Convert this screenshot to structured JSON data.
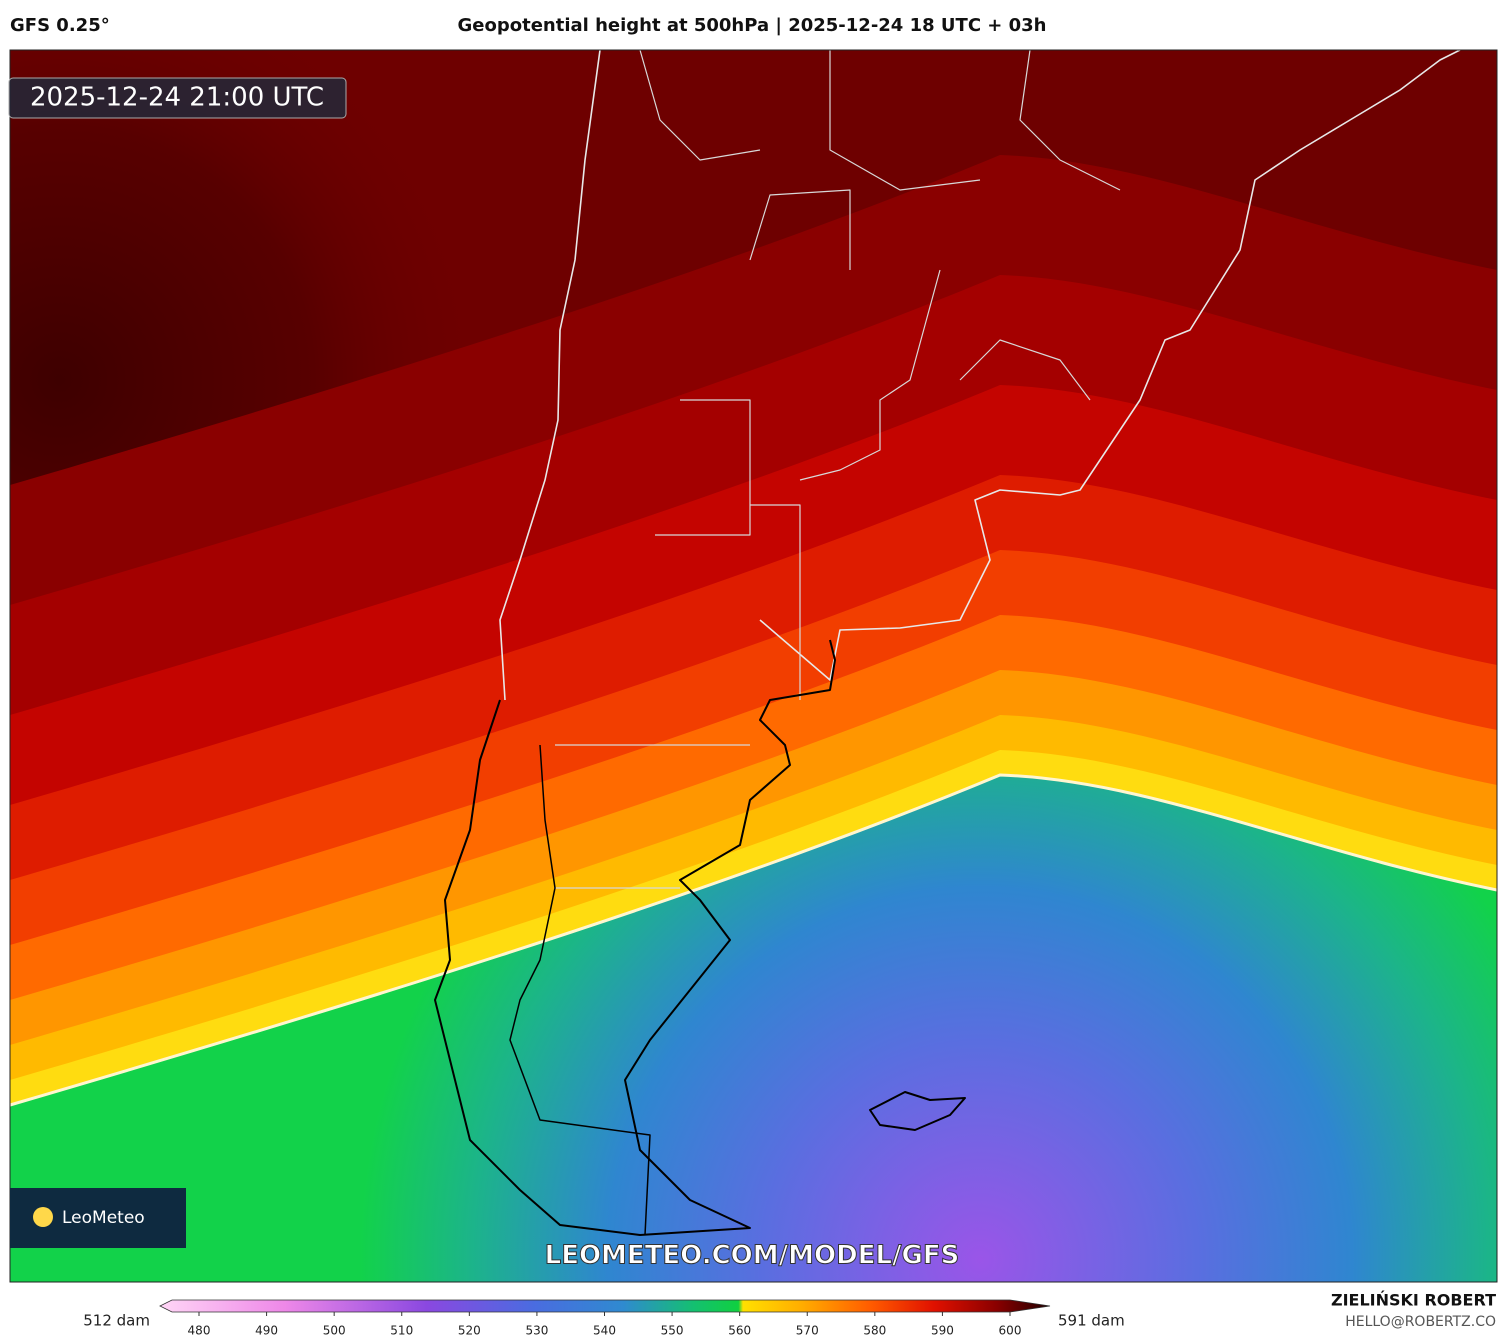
{
  "header": {
    "model": "GFS 0.25°",
    "title": "Geopotential height at 500hPa | 2025-12-24 18 UTC + 03h"
  },
  "map": {
    "valid_time": "2025-12-24 21:00 UTC",
    "watermark": "LEOMETEO.COM/MODEL/GFS",
    "logo": "LeoMeteo"
  },
  "colorbar": {
    "ticks": [
      480,
      490,
      500,
      510,
      520,
      530,
      540,
      550,
      560,
      570,
      580,
      590,
      600
    ],
    "left_label": "512 dam",
    "right_label": "591 dam"
  },
  "footer": {
    "author": "ZIELIŃSKI ROBERT",
    "email": "HELLO@ROBERTZ.CO"
  }
}
